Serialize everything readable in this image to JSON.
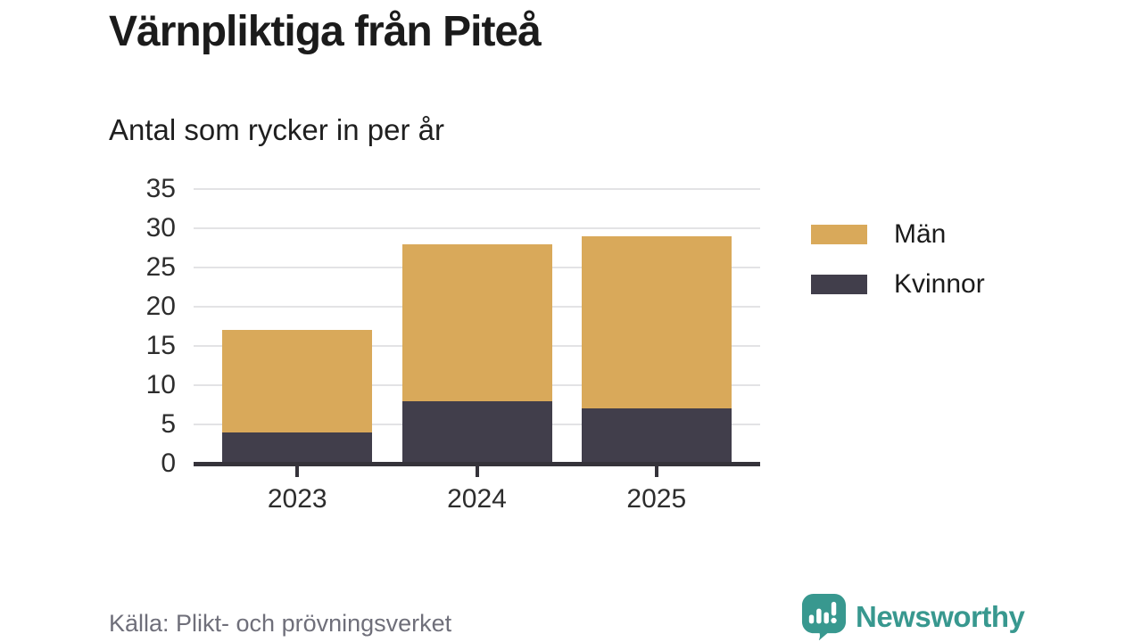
{
  "header": {
    "title": "Värnpliktiga från Piteå",
    "subtitle": "Antal som rycker in per år"
  },
  "chart_data": {
    "type": "bar",
    "stacked": true,
    "title": "Värnpliktiga från Piteå",
    "subtitle": "Antal som rycker in per år",
    "categories": [
      "2023",
      "2024",
      "2025"
    ],
    "series": [
      {
        "name": "Män",
        "color": "#d9a95a",
        "values": [
          13,
          20,
          22
        ]
      },
      {
        "name": "Kvinnor",
        "color": "#413e4b",
        "values": [
          4,
          8,
          7
        ]
      }
    ],
    "stack_totals": [
      17,
      28,
      29
    ],
    "xlabel": "",
    "ylabel": "",
    "ylim": [
      0,
      35
    ],
    "yticks": [
      0,
      5,
      10,
      15,
      20,
      25,
      30,
      35
    ],
    "grid": "horizontal",
    "legend_position": "right",
    "legend_order": [
      "Män",
      "Kvinnor"
    ]
  },
  "footer": {
    "source": "Källa: Plikt- och prövningsverket",
    "brand": "Newsworthy"
  },
  "colors": {
    "bar_men": "#d9a95a",
    "bar_women": "#413e4b",
    "gridline": "#e3e3e5",
    "axis": "#35333a",
    "title_text": "#1b1b1b",
    "tick_text": "#2d2d2d",
    "source_text": "#6f6f7a",
    "brand_teal": "#38988f"
  }
}
